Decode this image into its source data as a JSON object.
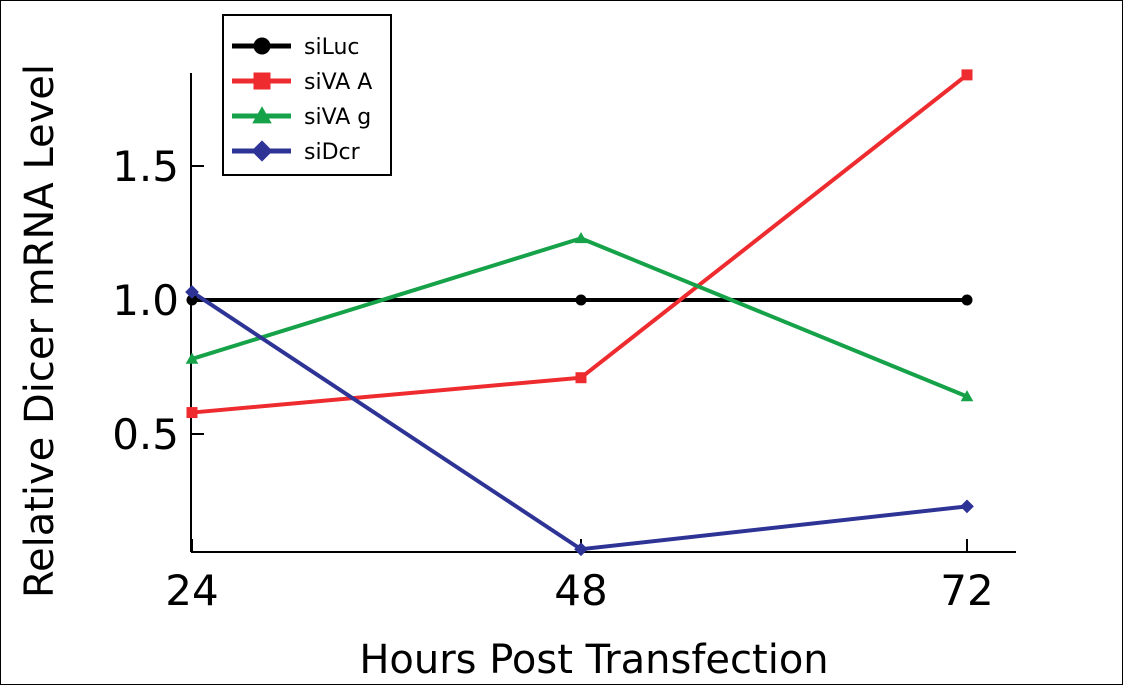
{
  "chart_data": {
    "type": "line",
    "xlabel": "Hours Post Transfection",
    "ylabel": "Relative Dicer mRNA Level",
    "categories": [
      "24",
      "48",
      "72"
    ],
    "x": [
      24,
      48,
      72
    ],
    "ylim": [
      0.06,
      1.86
    ],
    "yticks": [
      0.5,
      1.0,
      1.5
    ],
    "ytick_labels": [
      "0.5",
      "1.0",
      "1.5"
    ],
    "grid": false,
    "legend_position": "top-left",
    "series": [
      {
        "name": "siLuc",
        "values": [
          1.0,
          1.0,
          1.0
        ],
        "color": "#000000",
        "marker": "circle"
      },
      {
        "name": "siVA A",
        "values": [
          0.58,
          0.71,
          1.84
        ],
        "color": "#ee2b2e",
        "marker": "square"
      },
      {
        "name": "siVA g",
        "values": [
          0.78,
          1.23,
          0.64
        ],
        "color": "#16a249",
        "marker": "triangle"
      },
      {
        "name": "siDcr",
        "values": [
          1.03,
          0.07,
          0.23
        ],
        "color": "#2e3495",
        "marker": "diamond"
      }
    ]
  }
}
